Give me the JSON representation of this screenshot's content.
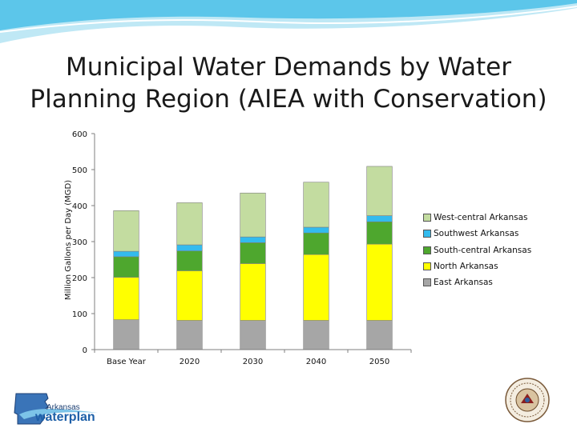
{
  "slide": {
    "title_line1": "Municipal Water Demands by Water",
    "title_line2": "Planning Region (AIEA with Conservation)"
  },
  "logos": {
    "left_small": "Arkansas",
    "left_main": "waterplan"
  },
  "colors": {
    "east": "#a6a6a6",
    "north": "#ffff00",
    "south_central": "#4ea72e",
    "southwest": "#33bbee",
    "west_central": "#c3dca0",
    "banner_blue": "#5cc6ea",
    "banner_light": "#bfe8f5"
  },
  "chart_data": {
    "type": "bar",
    "stacked": true,
    "title": "",
    "xlabel": "",
    "ylabel": "Million Gallons per Day (MGD)",
    "ylim": [
      0,
      600
    ],
    "yticks": [
      0,
      100,
      200,
      300,
      400,
      500,
      600
    ],
    "grid": false,
    "legend_position": "right",
    "categories": [
      "Base Year",
      "2020",
      "2030",
      "2040",
      "2050"
    ],
    "series": [
      {
        "name": "East Arkansas",
        "color": "#a6a6a6",
        "values": [
          83,
          81,
          81,
          81,
          81
        ]
      },
      {
        "name": "North Arkansas",
        "color": "#ffff00",
        "values": [
          118,
          138,
          158,
          183,
          212
        ]
      },
      {
        "name": "South-central Arkansas",
        "color": "#4ea72e",
        "values": [
          57,
          55,
          58,
          60,
          62
        ]
      },
      {
        "name": "Southwest Arkansas",
        "color": "#33bbee",
        "values": [
          15,
          17,
          16,
          16,
          17
        ]
      },
      {
        "name": "West-central Arkansas",
        "color": "#c3dca0",
        "values": [
          113,
          117,
          122,
          125,
          137
        ]
      }
    ]
  }
}
